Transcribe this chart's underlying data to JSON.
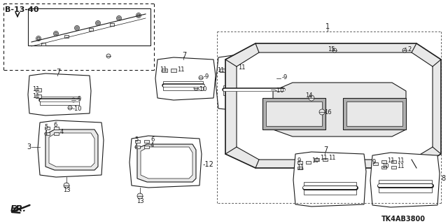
{
  "bg_color": "#ffffff",
  "line_color": "#1a1a1a",
  "diagram_code": "TK4AB3800",
  "ref_label": "B-13-40",
  "fr_label": "FR.",
  "figsize": [
    6.4,
    3.2
  ],
  "dpi": 100,
  "gray_fill": "#c8c8c8",
  "light_gray": "#e8e8e8",
  "mid_gray": "#b0b0b0"
}
